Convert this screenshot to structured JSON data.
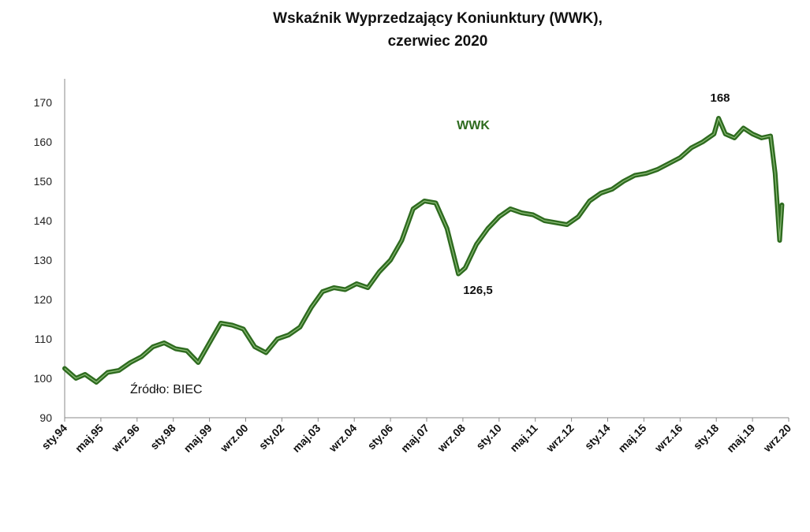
{
  "chart_data": {
    "type": "line",
    "title_line1": "Wskaźnik Wyprzedzający Koniunktury (WWK),",
    "title_line2": "czerwiec 2020",
    "xlabel": "",
    "ylabel": "",
    "ylim": [
      90,
      170
    ],
    "yticks": [
      90,
      100,
      110,
      120,
      130,
      140,
      150,
      160,
      170
    ],
    "xticks": [
      "sty.94",
      "maj.95",
      "wrz.96",
      "sty.98",
      "maj.99",
      "wrz.00",
      "sty.02",
      "maj.03",
      "wrz.04",
      "sty.06",
      "maj.07",
      "wrz.08",
      "sty.10",
      "maj.11",
      "wrz.12",
      "sty.14",
      "maj.15",
      "wrz.16",
      "sty.18",
      "maj.19",
      "wrz.20"
    ],
    "grid": false,
    "series_label": "WWK",
    "series_color": "#2e6b1f",
    "source": "Źródło: BIEC",
    "annotations": [
      {
        "text": "168",
        "x": "sty.18"
      },
      {
        "text": "126,5",
        "x": "wrz.08"
      }
    ],
    "series": [
      {
        "x": [
          "1994-01",
          "1994-06",
          "1994-10",
          "1995-03",
          "1995-08",
          "1996-01",
          "1996-06",
          "1996-11",
          "1997-04",
          "1997-09",
          "1998-02",
          "1998-07",
          "1998-12",
          "1999-05",
          "1999-10",
          "2000-03",
          "2000-08",
          "2001-01",
          "2001-06",
          "2001-11",
          "2002-04",
          "2002-09",
          "2003-02",
          "2003-07",
          "2003-12",
          "2004-05",
          "2004-10",
          "2005-03",
          "2005-08",
          "2006-01",
          "2006-06",
          "2006-11",
          "2007-04",
          "2007-09",
          "2008-02",
          "2008-07",
          "2008-10",
          "2009-03",
          "2009-08",
          "2010-01",
          "2010-06",
          "2010-11",
          "2011-04",
          "2011-09",
          "2012-02",
          "2012-07",
          "2012-12",
          "2013-05",
          "2013-10",
          "2014-03",
          "2014-08",
          "2015-01",
          "2015-06",
          "2015-11",
          "2016-04",
          "2016-09",
          "2017-02",
          "2017-07",
          "2017-12",
          "2018-02",
          "2018-05",
          "2018-09",
          "2019-01",
          "2019-05",
          "2019-09",
          "2020-01",
          "2020-03",
          "2020-05",
          "2020-06"
        ],
        "values": [
          102.5,
          100,
          101,
          99,
          101.5,
          102,
          104,
          105.5,
          108,
          109,
          107.5,
          107,
          104,
          109,
          114,
          113.5,
          112.5,
          108,
          106.5,
          110,
          111,
          113,
          118,
          122,
          123,
          122.5,
          124,
          123,
          127,
          130,
          135,
          143,
          145,
          144.5,
          138,
          126.5,
          128,
          134,
          138,
          141,
          143,
          142,
          141.5,
          140,
          139.5,
          139,
          141,
          145,
          147,
          148,
          150,
          151.5,
          152,
          153,
          154.5,
          156,
          158.5,
          160,
          162,
          166,
          162,
          161,
          163.5,
          162,
          161,
          161.5,
          152,
          135,
          144
        ]
      }
    ]
  }
}
